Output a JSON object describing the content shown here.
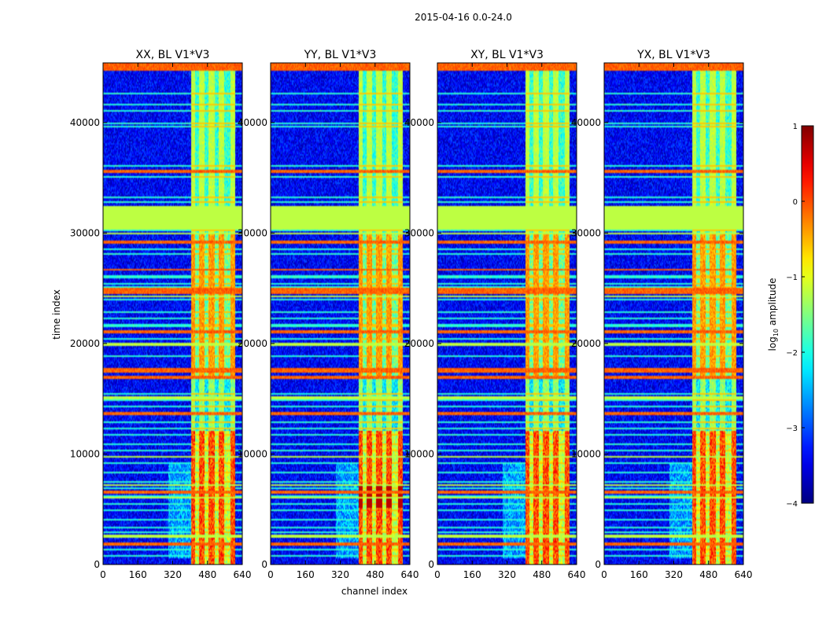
{
  "chart_data": {
    "type": "heatmap",
    "suptitle": "2015-04-16 0.0-24.0",
    "xlabel": "channel index",
    "ylabel": "time index",
    "xlim": [
      0,
      640
    ],
    "ylim": [
      0,
      45400
    ],
    "xticks": [
      "0",
      "160",
      "320",
      "480",
      "640"
    ],
    "xtick_values": [
      0,
      160,
      320,
      480,
      640
    ],
    "yticks": [
      "0",
      "10000",
      "20000",
      "30000",
      "40000"
    ],
    "ytick_values": [
      0,
      10000,
      20000,
      30000,
      40000
    ],
    "panels": [
      {
        "title": "XX, BL V1*V3"
      },
      {
        "title": "YY, BL V1*V3"
      },
      {
        "title": "XY, BL V1*V3"
      },
      {
        "title": "YX, BL V1*V3"
      }
    ],
    "colorbar": {
      "label": "log",
      "label_sub": "10",
      "label_rest": " amplitude",
      "range": [
        -4,
        1
      ],
      "ticks": [
        "1",
        "0",
        "−1",
        "−2",
        "−3",
        "−4"
      ],
      "tick_values": [
        1,
        0,
        -1,
        -2,
        -3,
        -4
      ],
      "colormap": "jet"
    },
    "features": {
      "signal_channel_range": [
        405,
        610
      ],
      "bright_channel_columns": [
        410,
        455,
        500,
        545,
        600
      ],
      "flagged_time_band": [
        30400,
        32500
      ],
      "flagged_value": -1.2,
      "background_value": -3.4
    }
  }
}
